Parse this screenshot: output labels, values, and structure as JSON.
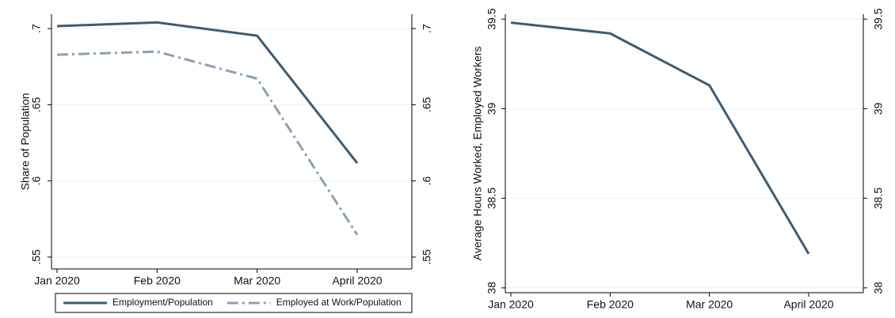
{
  "chart_data": [
    {
      "type": "line",
      "y_label": "Share of Population",
      "categories": [
        "Jan 2020",
        "Feb 2020",
        "Mar 2020",
        "April 2020"
      ],
      "series": [
        {
          "name": "Employment/Population",
          "color": "#3e5b73",
          "line_style": "solid",
          "values": [
            0.7016,
            0.704,
            0.6953,
            0.6117
          ]
        },
        {
          "name": "Employed at Work/Population",
          "color": "#8ca0b4",
          "line_style": "dashdot",
          "values": [
            0.6828,
            0.6849,
            0.6671,
            0.5646
          ]
        }
      ],
      "ylim": [
        0.5422,
        0.7094
      ],
      "yticks": [
        {
          "value": 0.55,
          "label": ".55"
        },
        {
          "value": 0.6,
          "label": ".6"
        },
        {
          "value": 0.65,
          "label": ".65"
        },
        {
          "value": 0.7,
          "label": ".7"
        }
      ],
      "mirror_y_axis": true,
      "grid": true,
      "legend": "bottom"
    },
    {
      "type": "line",
      "y_label": "Average Hours Worked, Employed Workers",
      "categories": [
        "Jan 2020",
        "Feb 2020",
        "Mar 2020",
        "April 2020"
      ],
      "color": "#3e5b73",
      "values": [
        39.48,
        39.42,
        39.13,
        38.19
      ],
      "ylim": [
        37.973,
        39.527
      ],
      "yticks": [
        38,
        38.5,
        39,
        39.5
      ],
      "mirror_y_axis": true,
      "grid": true
    }
  ]
}
